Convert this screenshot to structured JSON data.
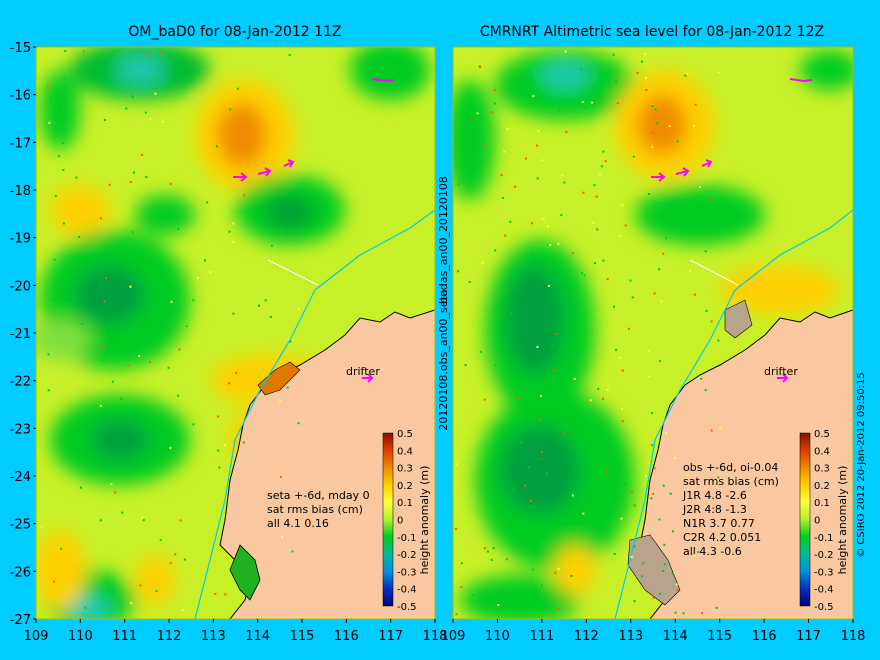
{
  "background_color": "#00ccff",
  "left_panel": {
    "title": "OM_baD0 for 08-Jan-2012 11Z",
    "side_label": "bodas_an00_20120108",
    "stats_lines": [
      "seta +-6d, mday 0",
      "sat rms bias (cm)",
      "all 4.1 0.16"
    ],
    "drifter_label": "drifter"
  },
  "right_panel": {
    "title": "CMRNRT Altimetric sea level  for 08-Jan-2012 12Z",
    "side_label": "20120108.obs_an00_seta",
    "stats_lines": [
      "obs +-6d, oi-0.04",
      "sat rms bias (cm)",
      "J1R  4.8 -2.6",
      "J2R  4.8 -1.3",
      "N1R  3.7 0.77",
      "C2R  4.2 0.051",
      "all 4.3 -0.6"
    ],
    "drifter_label": "drifter"
  },
  "y_ticks": [
    "-15",
    "-16",
    "-17",
    "-18",
    "-19",
    "-20",
    "-21",
    "-22",
    "-23",
    "-24",
    "-25",
    "-26",
    "-27"
  ],
  "x_ticks_left": [
    "109",
    "110",
    "111",
    "112",
    "113",
    "114",
    "115",
    "116",
    "117",
    "118"
  ],
  "x_ticks_right": [
    "109",
    "110",
    "111",
    "112",
    "113",
    "114",
    "115",
    "116",
    "117",
    "118"
  ],
  "colorbar": {
    "label": "height anomaly (m)",
    "ticks": [
      "0.5",
      "0.4",
      "0.3",
      "0.2",
      "0.1",
      "0",
      "-0.1",
      "-0.2",
      "-0.3",
      "-0.4",
      "-0.5"
    ]
  },
  "credit": "© CSIRO 2012  20-Jan-2012 09:50:15",
  "colors": {
    "land": "#f9c8a0",
    "land_edge": "#000000",
    "coastline_fringe": "#b8a48c",
    "high": "#e07800",
    "mid": "#ffff40",
    "low": "#00cc20",
    "drifter_arrow": "#ff00ff"
  },
  "extent": {
    "lon": [
      109,
      118
    ],
    "lat": [
      -27,
      -15
    ]
  }
}
